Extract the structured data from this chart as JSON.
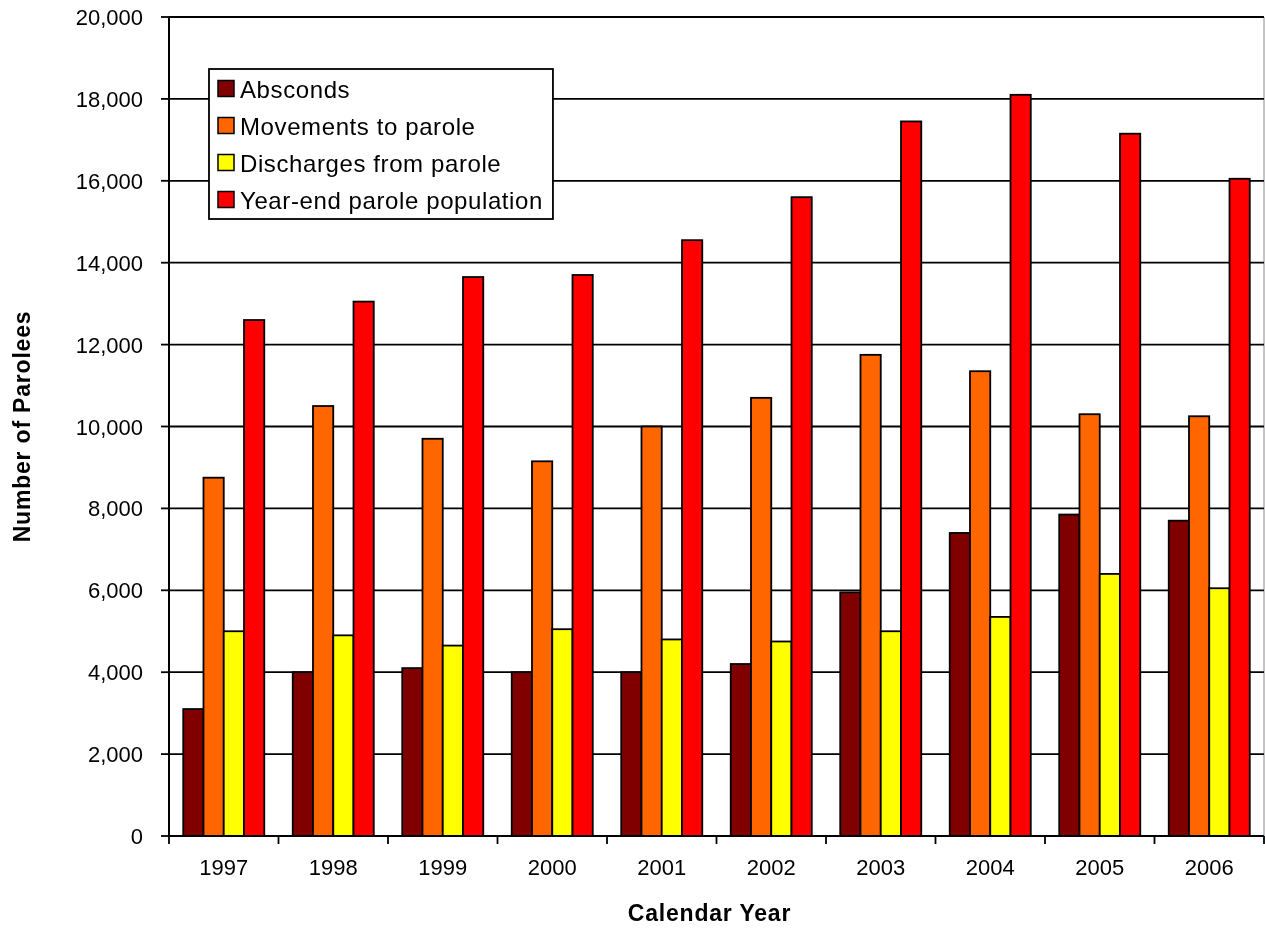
{
  "chart_data": {
    "type": "bar",
    "xlabel": "Calendar Year",
    "ylabel": "Number of Parolees",
    "categories": [
      "1997",
      "1998",
      "1999",
      "2000",
      "2001",
      "2002",
      "2003",
      "2004",
      "2005",
      "2006"
    ],
    "series": [
      {
        "name": "Absconds",
        "color": "#800000",
        "values": [
          3100,
          4000,
          4100,
          4000,
          4000,
          4200,
          5950,
          7400,
          7850,
          7700
        ]
      },
      {
        "name": "Movements to parole",
        "color": "#ff6600",
        "values": [
          8750,
          10500,
          9700,
          9150,
          10000,
          10700,
          11750,
          11350,
          10300,
          10250
        ]
      },
      {
        "name": "Discharges from parole",
        "color": "#ffff00",
        "values": [
          5000,
          4900,
          4650,
          5050,
          4800,
          4750,
          5000,
          5350,
          6400,
          6050
        ]
      },
      {
        "name": "Year-end parole population",
        "color": "#ff0000",
        "values": [
          12600,
          13050,
          13650,
          13700,
          14550,
          15600,
          17450,
          18100,
          17150,
          16050
        ]
      }
    ],
    "ylim": [
      0,
      20000
    ],
    "yticks": [
      0,
      {
        "value": 2000,
        "label": "2,000"
      },
      {
        "value": 4000,
        "label": "4,000"
      },
      {
        "value": 6000,
        "label": "6,000"
      },
      {
        "value": 8000,
        "label": "8,000"
      },
      {
        "value": 10000,
        "label": "10,000"
      },
      {
        "value": 12000,
        "label": "12,000"
      },
      {
        "value": 14000,
        "label": "14,000"
      },
      {
        "value": 16000,
        "label": "16,000"
      },
      {
        "value": 18000,
        "label": "18,000"
      },
      {
        "value": 20000,
        "label": "20,000"
      }
    ],
    "grid": "y",
    "legend": "top left"
  }
}
